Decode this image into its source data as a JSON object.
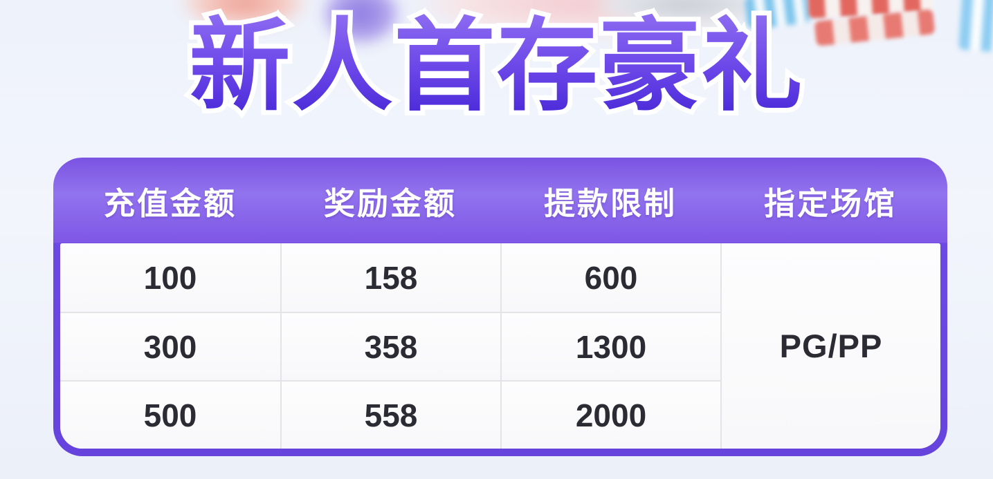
{
  "title": {
    "text": "新人首存豪礼"
  },
  "table": {
    "headers": [
      "充值金额",
      "奖励金额",
      "提款限制",
      "指定场馆"
    ],
    "rows": [
      [
        "100",
        "158",
        "600"
      ],
      [
        "300",
        "358",
        "1300"
      ],
      [
        "500",
        "558",
        "2000"
      ]
    ],
    "venue": "PG/PP"
  },
  "colors": {
    "page_background": "#eef2fa",
    "accent_border_purple": "#6a47e2",
    "header_gradient_top": "#9273ee",
    "header_gradient_bottom": "#7e57e6",
    "title_gradient_top": "#8f6ef2",
    "title_gradient_bottom": "#4526d6",
    "title_outline": "#ffffff",
    "header_text": "#ffffff",
    "cell_text": "#2b2b33",
    "cell_background": "#fbfbfd",
    "grid_line": "#e3e3e8",
    "chip_red": "#e2675f",
    "chip_blue": "#7cc4ec"
  }
}
